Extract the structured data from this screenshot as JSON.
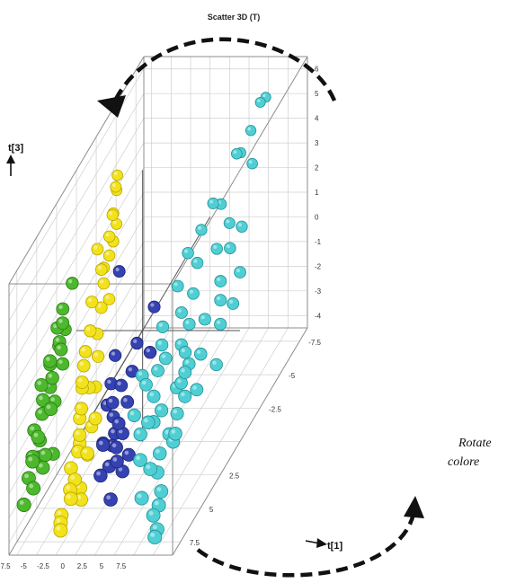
{
  "chart_data": {
    "type": "scatter",
    "title": "Scatter 3D (T)",
    "axes": {
      "x": {
        "label": "t[1]",
        "ticks": [
          "-7.5",
          "-5",
          "-2.5",
          "0",
          "2.5",
          "5",
          "7.5"
        ]
      },
      "y": {
        "label": "",
        "ticks": [
          "7.5",
          "5",
          "2.5",
          "-2.5",
          "-5",
          "-7.5"
        ]
      },
      "z": {
        "label": "t[3]",
        "ticks": [
          "6",
          "5",
          "4",
          "3",
          "2",
          "1",
          "0",
          "-1",
          "-2",
          "-3",
          "-4"
        ]
      }
    },
    "grid": true,
    "caption_lines": [
      "Rotate",
      "colore"
    ],
    "series": [
      {
        "color": "#f2e21c",
        "edge": "#b8a600",
        "points": [
          [
            -6.5,
            -3,
            4.2
          ],
          [
            -6.3,
            -2.5,
            3.4
          ],
          [
            -6.2,
            -2.8,
            2.8
          ],
          [
            -5.8,
            -1.5,
            3.0
          ],
          [
            -5.3,
            -1,
            2.5
          ],
          [
            -5.8,
            -0.5,
            2.2
          ],
          [
            -5.2,
            -0.2,
            1.8
          ],
          [
            -5.5,
            1,
            1.7
          ],
          [
            -4.8,
            0.5,
            1.2
          ],
          [
            -5.2,
            1.5,
            0.8
          ],
          [
            -4.8,
            2.5,
            0.5
          ],
          [
            -4.5,
            3,
            0.2
          ],
          [
            -4.2,
            3.5,
            -0.2
          ],
          [
            -4.5,
            3.2,
            -0.6
          ],
          [
            -3.8,
            4,
            -1.0
          ],
          [
            -4.2,
            3.8,
            -1.5
          ],
          [
            -3.5,
            4.5,
            -1.8
          ],
          [
            -3.2,
            5,
            -2.2
          ],
          [
            -3.6,
            5.5,
            -2.6
          ],
          [
            -2.8,
            5.8,
            -2.9
          ],
          [
            -3.2,
            6,
            -3.2
          ],
          [
            -2.4,
            5.5,
            -3.4
          ],
          [
            -1.8,
            6,
            -3.6
          ],
          [
            -5.8,
            0,
            3.3
          ],
          [
            -6,
            -1,
            2.0
          ],
          [
            -5,
            0.8,
            0.3
          ],
          [
            -4.5,
            1.2,
            -0.4
          ],
          [
            -4,
            2,
            -1.2
          ],
          [
            -3,
            3.5,
            -2.0
          ],
          [
            -2.5,
            4.5,
            -2.6
          ],
          [
            -4.8,
            -0.5,
            1.0
          ],
          [
            -4,
            4,
            -2.4
          ],
          [
            -2,
            4,
            -1.4
          ],
          [
            -1.5,
            5.5,
            -2.0
          ],
          [
            -3.5,
            6.8,
            -3.8
          ],
          [
            -3.4,
            7,
            -4.0
          ],
          [
            -3.2,
            7.2,
            -4.2
          ],
          [
            -6.8,
            -3.5,
            4.4
          ],
          [
            -6.7,
            -3.3,
            3.9
          ],
          [
            -5.9,
            -2,
            3.6
          ],
          [
            -5.3,
            -1.5,
            2.8
          ],
          [
            -4,
            2.8,
            -0.8
          ],
          [
            -2.6,
            6.5,
            -3.3
          ]
        ]
      },
      {
        "color": "#4cb82c",
        "edge": "#2a7a14",
        "points": [
          [
            -7,
            2,
            3.0
          ],
          [
            -7.2,
            3,
            2.5
          ],
          [
            -7.4,
            3.5,
            2.0
          ],
          [
            -6.8,
            3.8,
            1.6
          ],
          [
            -7.3,
            4.5,
            1.2
          ],
          [
            -7.6,
            4.2,
            0.9
          ],
          [
            -6.6,
            3.6,
            0.6
          ],
          [
            -7,
            4.8,
            0.3
          ],
          [
            -7.5,
            5.2,
            0.0
          ],
          [
            -7.3,
            5.5,
            -0.4
          ],
          [
            -7.8,
            6,
            -0.8
          ],
          [
            -7.1,
            6,
            -1.2
          ],
          [
            -7.5,
            6.5,
            -1.6
          ],
          [
            -6.6,
            5.8,
            -1.9
          ],
          [
            -6.2,
            5.5,
            -0.2
          ],
          [
            -6.5,
            6.2,
            -2.2
          ],
          [
            -6.9,
            7,
            -2.6
          ],
          [
            -7.6,
            7.5,
            -3.0
          ],
          [
            -6.6,
            4.8,
            -2.4
          ],
          [
            -7.7,
            3,
            1.0
          ],
          [
            -6.4,
            4,
            1.4
          ],
          [
            -7,
            4.2,
            -0.6
          ],
          [
            -7.4,
            5.8,
            -2.0
          ],
          [
            -6.8,
            6.5,
            -0.8
          ],
          [
            -7.9,
            5,
            0.5
          ],
          [
            -6.7,
            3.5,
            2.2
          ],
          [
            -7.4,
            2.5,
            1.4
          ],
          [
            -6.8,
            7.2,
            -1.4
          ],
          [
            -6.3,
            5.2,
            0.9
          ],
          [
            -7.7,
            6.8,
            -2.3
          ]
        ]
      },
      {
        "color": "#3542b2",
        "edge": "#1d2470",
        "points": [
          [
            -2,
            1.5,
            -0.2
          ],
          [
            -1.5,
            2.5,
            -0.8
          ],
          [
            -0.8,
            3,
            -1.3
          ],
          [
            -0.2,
            3.5,
            -1.6
          ],
          [
            0.5,
            4,
            -2.0
          ],
          [
            1.2,
            4.5,
            -2.3
          ],
          [
            0.8,
            5,
            -2.8
          ],
          [
            1.8,
            5,
            -2.6
          ],
          [
            -0.5,
            4.5,
            -2.2
          ],
          [
            0.2,
            5.5,
            -2.9
          ],
          [
            2.5,
            5,
            -3.0
          ],
          [
            -1.5,
            3,
            -1.4
          ],
          [
            0.3,
            3,
            -0.6
          ],
          [
            1.2,
            2.5,
            -0.3
          ],
          [
            2.5,
            1,
            1.5
          ],
          [
            -3,
            0,
            2.4
          ],
          [
            2,
            6,
            -3.6
          ],
          [
            1,
            4,
            -1.6
          ],
          [
            0.8,
            1.5,
            0.3
          ],
          [
            -1,
            4,
            -2.4
          ],
          [
            1.6,
            3.5,
            -1.0
          ],
          [
            3,
            2,
            0.2
          ],
          [
            0.2,
            4,
            -2.5
          ],
          [
            1.5,
            4,
            -2.0
          ],
          [
            2.8,
            4.5,
            -2.6
          ]
        ]
      },
      {
        "color": "#4fcfd3",
        "edge": "#209097",
        "points": [
          [
            7,
            -3,
            3.5
          ],
          [
            8,
            -4,
            5.0
          ],
          [
            9,
            -6,
            6.0
          ],
          [
            7.5,
            -5,
            4.5
          ],
          [
            5.5,
            -2,
            3.0
          ],
          [
            6,
            -1,
            2.2
          ],
          [
            6.5,
            0,
            1.5
          ],
          [
            7,
            1,
            0.8
          ],
          [
            7.5,
            2,
            0.2
          ],
          [
            8,
            3,
            -0.5
          ],
          [
            8.5,
            4,
            -1.2
          ],
          [
            9,
            5,
            -1.8
          ],
          [
            9,
            6.5,
            -3.0
          ],
          [
            8,
            6,
            -2.5
          ],
          [
            7,
            7,
            -3.0
          ],
          [
            6.5,
            5,
            -1.0
          ],
          [
            5.5,
            4,
            -0.5
          ],
          [
            5,
            3,
            0.0
          ],
          [
            4.5,
            2,
            0.5
          ],
          [
            4,
            3.5,
            -0.3
          ],
          [
            3.5,
            4.5,
            -1.0
          ],
          [
            3,
            3,
            -0.2
          ],
          [
            6,
            3,
            0.5
          ],
          [
            7,
            4.5,
            -0.8
          ],
          [
            8.5,
            2.5,
            0.0
          ],
          [
            9,
            1,
            1.0
          ],
          [
            10,
            0,
            2.0
          ],
          [
            10.5,
            0.5,
            1.5
          ],
          [
            11,
            1,
            0.8
          ],
          [
            10,
            2.5,
            0.4
          ],
          [
            9.5,
            4,
            -0.5
          ],
          [
            9,
            3.5,
            0.2
          ],
          [
            10.5,
            3.5,
            -0.5
          ],
          [
            11.5,
            2,
            -0.3
          ],
          [
            8,
            -1.5,
            2.5
          ],
          [
            8.6,
            -2.5,
            3.0
          ],
          [
            9,
            6.8,
            -3.4
          ],
          [
            8.5,
            7,
            -3.7
          ],
          [
            9.5,
            7.5,
            -4.0
          ],
          [
            9.4,
            7.7,
            -4.2
          ],
          [
            4.5,
            0,
            1.8
          ],
          [
            4.8,
            -1,
            2.6
          ],
          [
            6.5,
            -2.5,
            3.8
          ],
          [
            5.8,
            6,
            -2.0
          ],
          [
            7.8,
            5.5,
            -2.0
          ],
          [
            9.8,
            5.5,
            -1.2
          ],
          [
            10.2,
            -1,
            2.8
          ],
          [
            11.2,
            -1.5,
            3.4
          ],
          [
            5.5,
            0.5,
            1.0
          ],
          [
            4.8,
            5,
            -1.5
          ],
          [
            3.8,
            1.2,
            0.8
          ],
          [
            7.2,
            2.8,
            -0.8
          ],
          [
            8.8,
            -5,
            5.4
          ],
          [
            9.5,
            -6.2,
            6.1
          ],
          [
            10,
            -4,
            4.6
          ],
          [
            7.4,
            6.3,
            -2.2
          ],
          [
            11.8,
            0.2,
            1.2
          ],
          [
            12.2,
            -0.3,
            2.2
          ],
          [
            6.2,
            5.4,
            -0.8
          ],
          [
            8.3,
            4.8,
            -1.6
          ],
          [
            6.8,
            1.8,
            0.4
          ]
        ]
      }
    ]
  }
}
